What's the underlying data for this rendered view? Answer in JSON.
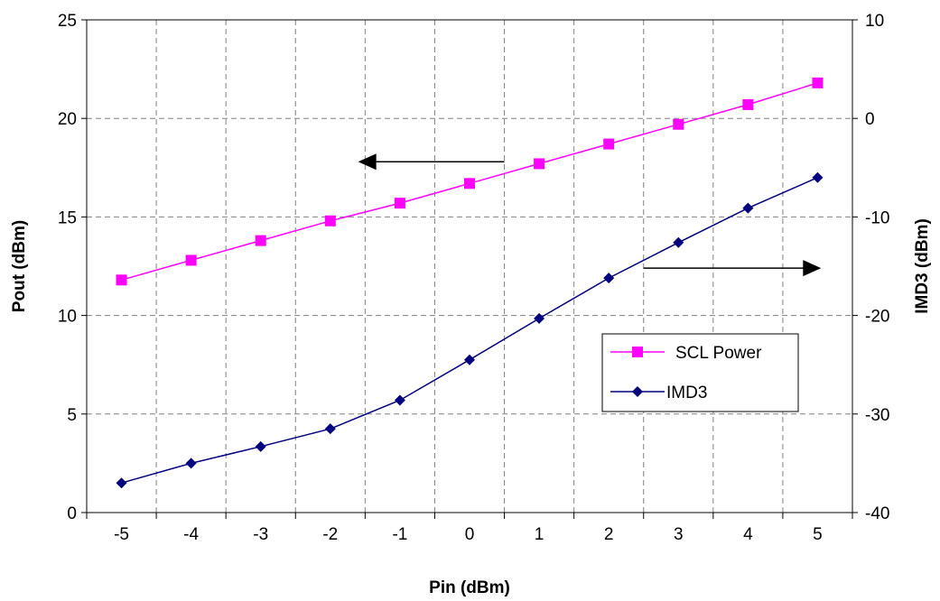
{
  "chart_data": {
    "type": "line",
    "title": "",
    "xlabel": "Pin (dBm)",
    "ylabel_left": "Pout (dBm)",
    "ylabel_right": "IMD3 (dBm)",
    "x": [
      -5,
      -4,
      -3,
      -2,
      -1,
      0,
      1,
      2,
      3,
      4,
      5
    ],
    "xlim": [
      -5.5,
      5.5
    ],
    "ylim_left": [
      0,
      25
    ],
    "ylim_right": [
      -40,
      10
    ],
    "x_ticks": [
      "-5",
      "-4",
      "-3",
      "-2",
      "-1",
      "0",
      "1",
      "2",
      "3",
      "4",
      "5"
    ],
    "y_left_ticks": [
      "0",
      "5",
      "10",
      "15",
      "20",
      "25"
    ],
    "y_right_ticks": [
      "-40",
      "-30",
      "-20",
      "-10",
      "0",
      "10"
    ],
    "grid": true,
    "legend_placement": "lower-right",
    "series": [
      {
        "name": "SCL Power",
        "axis": "left",
        "color": "#ff00ff",
        "marker": "square",
        "values": [
          11.8,
          12.8,
          13.8,
          14.8,
          15.7,
          16.7,
          17.7,
          18.7,
          19.7,
          20.7,
          21.8
        ]
      },
      {
        "name": "IMD3",
        "axis": "right",
        "color": "#000080",
        "marker": "diamond",
        "values": [
          -37.0,
          -35.0,
          -33.3,
          -31.5,
          -28.6,
          -24.5,
          -20.3,
          -16.2,
          -12.6,
          -9.1,
          -6.0
        ]
      }
    ],
    "annotations": [
      {
        "type": "arrow",
        "direction": "left",
        "points_to": "left axis",
        "near_series": "SCL Power"
      },
      {
        "type": "arrow",
        "direction": "right",
        "points_to": "right axis",
        "near_series": "IMD3"
      }
    ]
  }
}
